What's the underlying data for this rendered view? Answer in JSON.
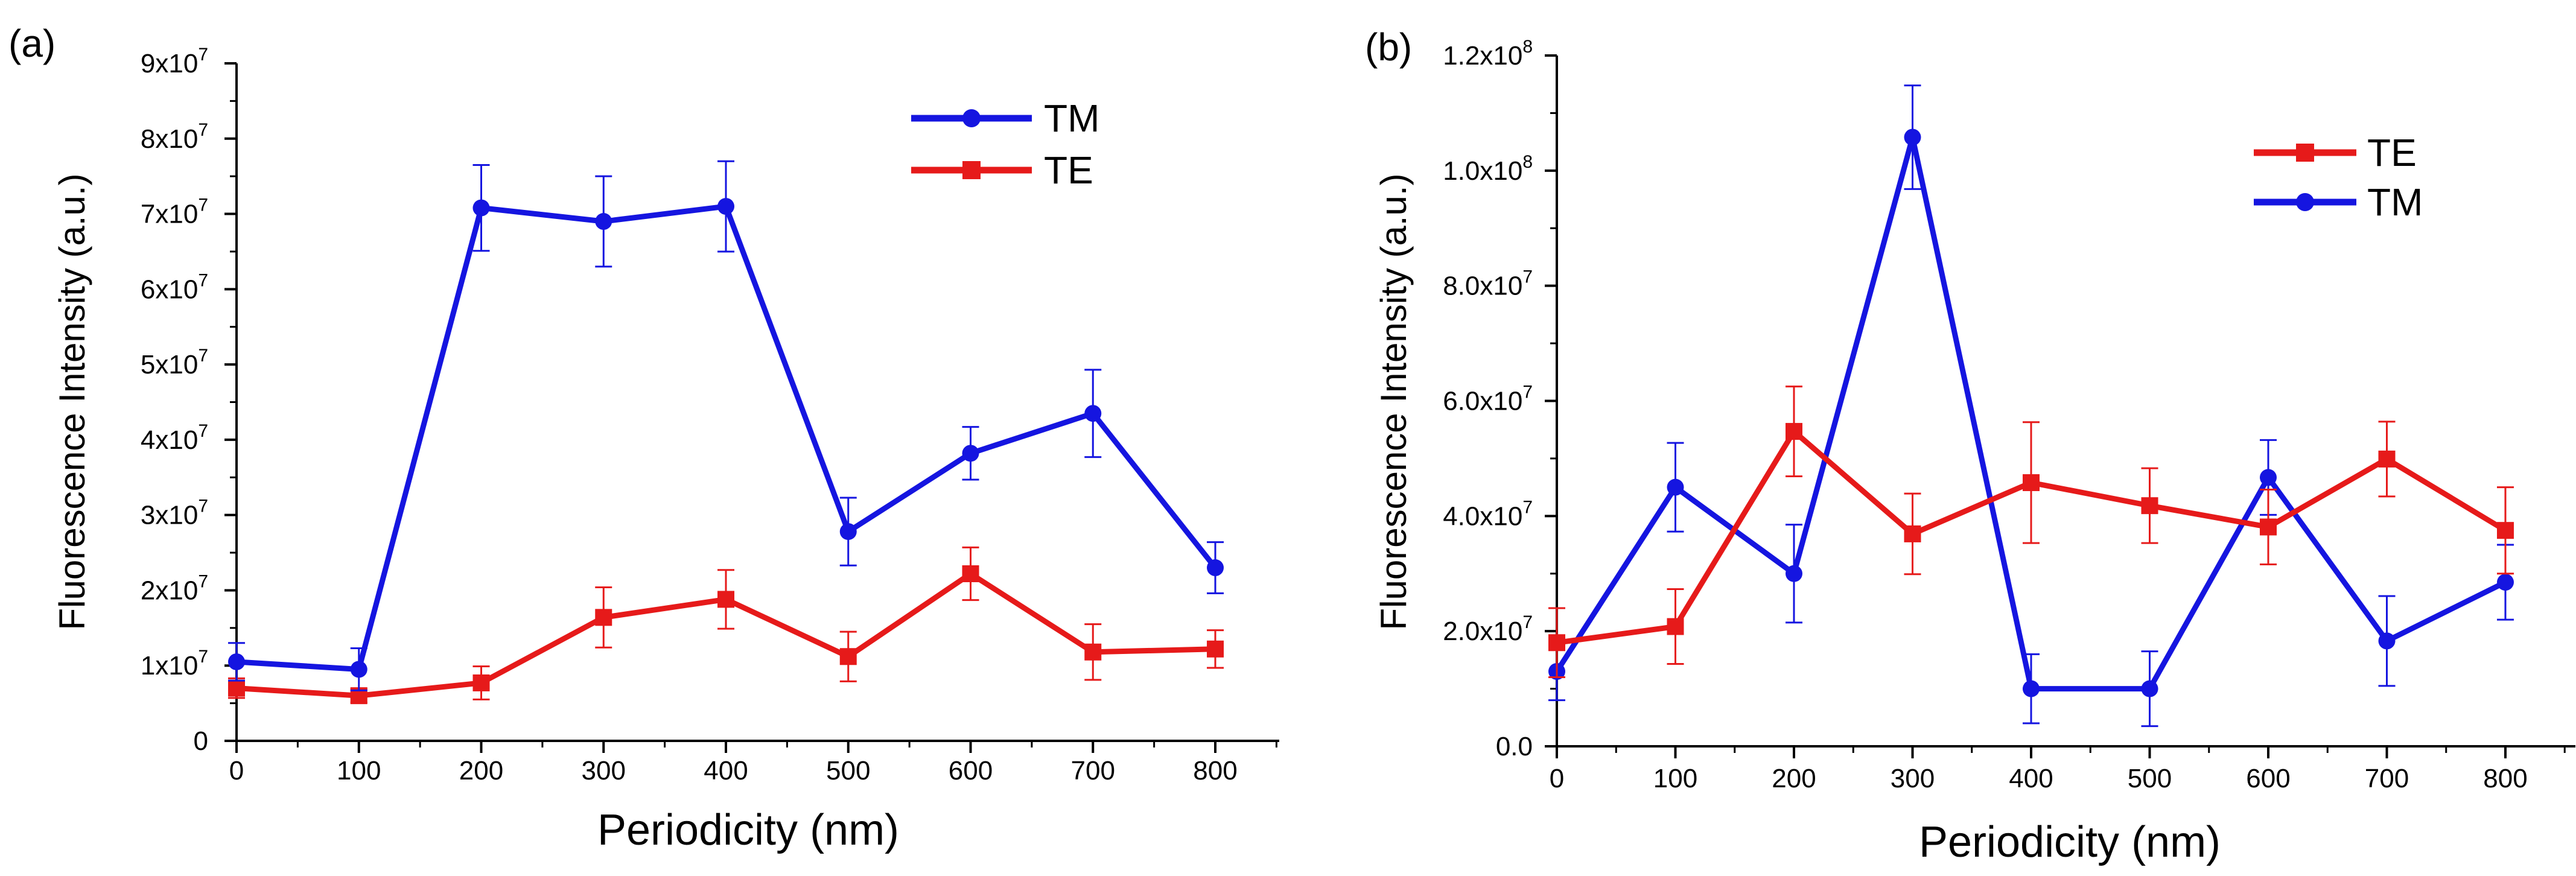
{
  "chart_data": [
    {
      "type": "line",
      "panel_label": "(a)",
      "xlabel": "Periodicity (nm)",
      "ylabel": "Fluorescence Intensity (a.u.)",
      "xlim": [
        0,
        850
      ],
      "ylim": [
        0,
        90000000
      ],
      "x_ticks": [
        0,
        100,
        200,
        300,
        400,
        500,
        600,
        700,
        800
      ],
      "x_tick_labels": [
        "0",
        "100",
        "200",
        "300",
        "400",
        "500",
        "600",
        "700",
        "800"
      ],
      "y_ticks": [
        0,
        10000000,
        20000000,
        30000000,
        40000000,
        50000000,
        60000000,
        70000000,
        80000000,
        90000000
      ],
      "y_tick_labels": [
        {
          "base": "0",
          "exp": ""
        },
        {
          "base": "1x10",
          "exp": "7"
        },
        {
          "base": "2x10",
          "exp": "7"
        },
        {
          "base": "3x10",
          "exp": "7"
        },
        {
          "base": "4x10",
          "exp": "7"
        },
        {
          "base": "5x10",
          "exp": "7"
        },
        {
          "base": "6x10",
          "exp": "7"
        },
        {
          "base": "7x10",
          "exp": "7"
        },
        {
          "base": "8x10",
          "exp": "7"
        },
        {
          "base": "9x10",
          "exp": "7"
        }
      ],
      "legend_position": "top-right",
      "series": [
        {
          "name": "TM",
          "color": "#1515e0",
          "marker": "circle",
          "x": [
            0,
            100,
            200,
            300,
            400,
            500,
            600,
            700,
            800
          ],
          "y": [
            10500000,
            9500000,
            70800000,
            69000000,
            71000000,
            27800000,
            38200000,
            43500000,
            23000000
          ],
          "err": [
            2500000,
            2800000,
            5700000,
            6000000,
            6000000,
            4500000,
            3500000,
            5800000,
            3400000
          ]
        },
        {
          "name": "TE",
          "color": "#e61a1a",
          "marker": "square",
          "x": [
            0,
            100,
            200,
            300,
            400,
            500,
            600,
            700,
            800
          ],
          "y": [
            7000000,
            6000000,
            7700000,
            16400000,
            18800000,
            11200000,
            22200000,
            11800000,
            12200000
          ],
          "err": [
            1300000,
            900000,
            2200000,
            4000000,
            3900000,
            3300000,
            3500000,
            3700000,
            2500000
          ]
        }
      ]
    },
    {
      "type": "line",
      "panel_label": "(b)",
      "xlabel": "Periodicity (nm)",
      "ylabel": "Fluorescence Intensity (a.u.)",
      "xlim": [
        0,
        850
      ],
      "ylim": [
        0,
        120000000
      ],
      "x_ticks": [
        0,
        100,
        200,
        300,
        400,
        500,
        600,
        700,
        800
      ],
      "x_tick_labels": [
        "0",
        "100",
        "200",
        "300",
        "400",
        "500",
        "600",
        "700",
        "800"
      ],
      "y_ticks": [
        0,
        20000000,
        40000000,
        60000000,
        80000000,
        100000000,
        120000000
      ],
      "y_tick_labels": [
        {
          "base": "0.0",
          "exp": ""
        },
        {
          "base": "2.0x10",
          "exp": "7"
        },
        {
          "base": "4.0x10",
          "exp": "7"
        },
        {
          "base": "6.0x10",
          "exp": "7"
        },
        {
          "base": "8.0x10",
          "exp": "7"
        },
        {
          "base": "1.0x10",
          "exp": "8"
        },
        {
          "base": "1.2x10",
          "exp": "8"
        }
      ],
      "legend_position": "top-right",
      "series": [
        {
          "name": "TE",
          "color": "#e61a1a",
          "marker": "square",
          "x": [
            0,
            100,
            200,
            300,
            400,
            500,
            600,
            700,
            800
          ],
          "y": [
            18000000,
            20800000,
            54700000,
            36900000,
            45800000,
            41800000,
            38100000,
            49900000,
            37500000
          ],
          "err": [
            6000000,
            6500000,
            7800000,
            7000000,
            10500000,
            6500000,
            6500000,
            6500000,
            7500000
          ]
        },
        {
          "name": "TM",
          "color": "#1515e0",
          "marker": "circle",
          "x": [
            0,
            100,
            200,
            300,
            400,
            500,
            600,
            700,
            800
          ],
          "y": [
            13000000,
            45000000,
            30000000,
            105800000,
            10000000,
            10000000,
            46700000,
            18300000,
            28500000
          ],
          "err": [
            5000000,
            7700000,
            8500000,
            9000000,
            6000000,
            6500000,
            6500000,
            7800000,
            6500000
          ]
        }
      ]
    }
  ]
}
